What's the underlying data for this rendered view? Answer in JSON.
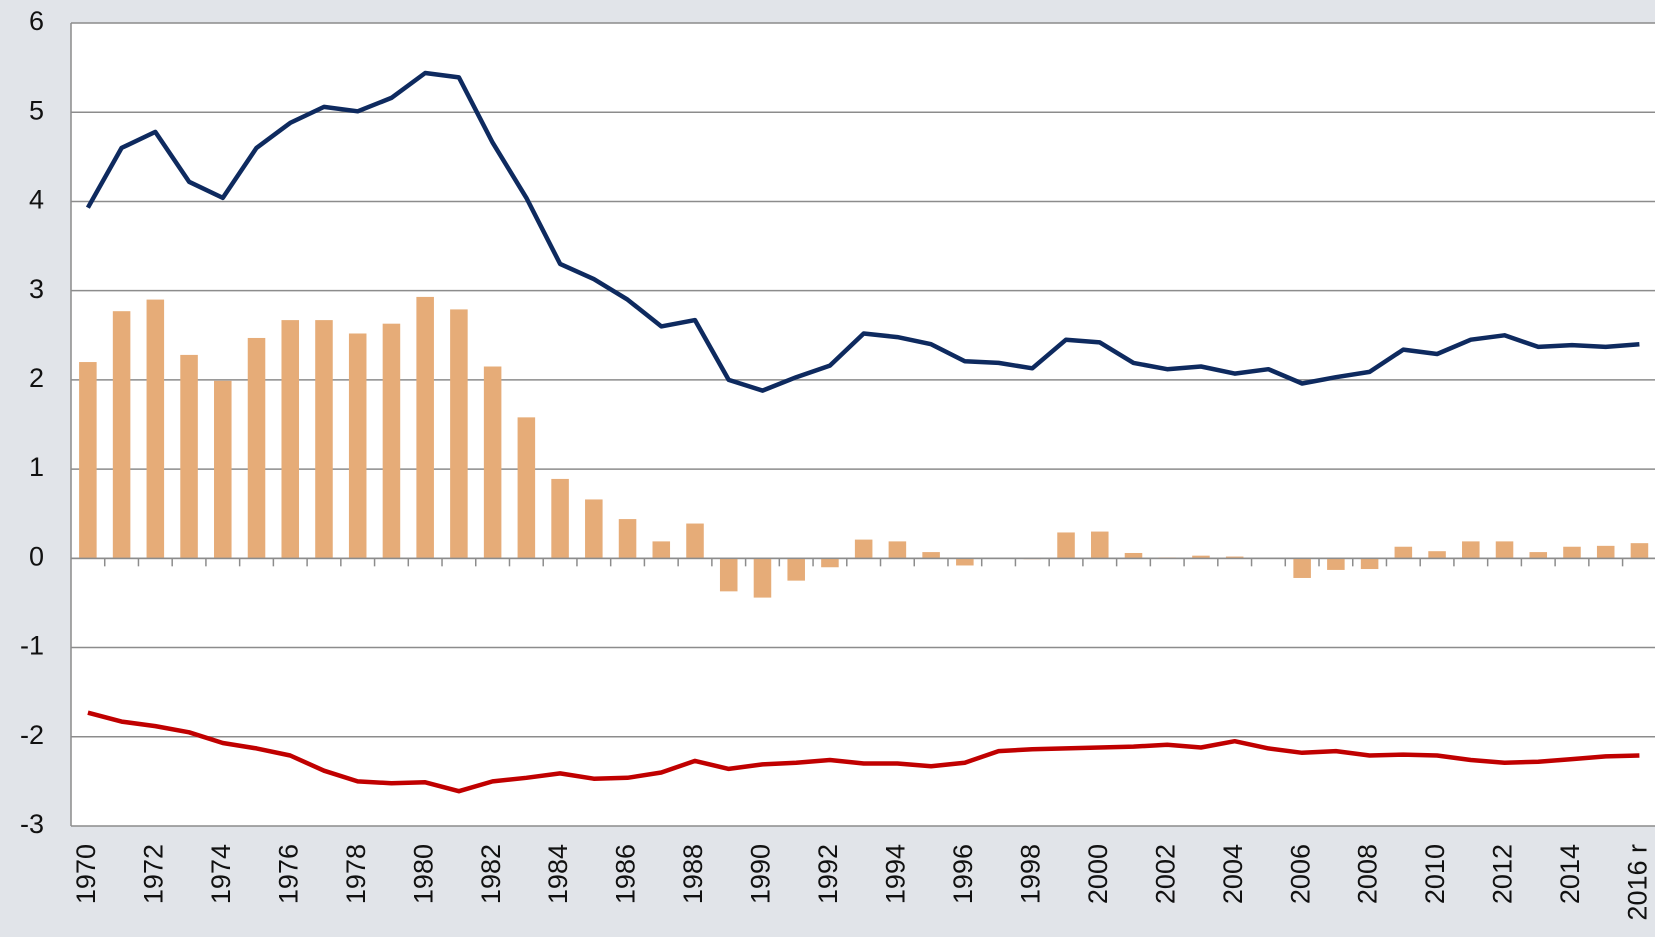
{
  "chart_data": {
    "type": "combo",
    "categories": [
      "1970",
      null,
      "1972",
      null,
      "1974",
      null,
      "1976",
      null,
      "1978",
      null,
      "1980",
      null,
      "1982",
      null,
      "1984",
      null,
      "1986",
      null,
      "1988",
      null,
      "1990",
      null,
      "1992",
      null,
      "1994",
      null,
      "1996",
      null,
      "1998",
      null,
      "2000",
      null,
      "2002",
      null,
      "2004",
      null,
      "2006",
      null,
      "2008",
      null,
      "2010",
      null,
      "2012",
      null,
      "2014",
      null,
      "2016 r"
    ],
    "series": [
      {
        "type": "bar",
        "color": "#e6ac78",
        "values": [
          2.2,
          2.77,
          2.9,
          2.28,
          1.99,
          2.47,
          2.67,
          2.67,
          2.52,
          2.63,
          2.93,
          2.79,
          2.15,
          1.58,
          0.89,
          0.66,
          0.44,
          0.19,
          0.39,
          -0.37,
          -0.44,
          -0.25,
          -0.1,
          0.21,
          0.19,
          0.07,
          -0.08,
          0,
          -0.01,
          0.29,
          0.3,
          0.06,
          0.01,
          0.03,
          0.02,
          0,
          -0.22,
          -0.13,
          -0.12,
          0.13,
          0.08,
          0.19,
          0.19,
          0.07,
          0.13,
          0.14,
          0.17
        ]
      },
      {
        "type": "line",
        "color": "#0e2a5f",
        "values": [
          3.93,
          4.6,
          4.78,
          4.22,
          4.04,
          4.6,
          4.88,
          5.06,
          5.01,
          5.16,
          5.44,
          5.39,
          4.66,
          4.04,
          3.3,
          3.13,
          2.9,
          2.6,
          2.67,
          2.0,
          1.88,
          2.03,
          2.16,
          2.52,
          2.48,
          2.4,
          2.21,
          2.19,
          2.13,
          2.45,
          2.42,
          2.19,
          2.12,
          2.15,
          2.07,
          2.12,
          1.96,
          2.03,
          2.09,
          2.34,
          2.29,
          2.45,
          2.5,
          2.37,
          2.39,
          2.37,
          2.4
        ]
      },
      {
        "type": "line",
        "color": "#c00000",
        "values": [
          -1.73,
          -1.83,
          -1.88,
          -1.95,
          -2.07,
          -2.13,
          -2.21,
          -2.38,
          -2.5,
          -2.52,
          -2.51,
          -2.61,
          -2.5,
          -2.46,
          -2.41,
          -2.47,
          -2.46,
          -2.4,
          -2.27,
          -2.36,
          -2.31,
          -2.29,
          -2.26,
          -2.3,
          -2.3,
          -2.33,
          -2.29,
          -2.16,
          -2.14,
          -2.13,
          -2.12,
          -2.11,
          -2.09,
          -2.12,
          -2.05,
          -2.13,
          -2.18,
          -2.16,
          -2.21,
          -2.2,
          -2.21,
          -2.26,
          -2.29,
          -2.28,
          -2.25,
          -2.22,
          -2.21
        ]
      }
    ],
    "ylim": [
      -3,
      6
    ],
    "yticks": [
      -3,
      -2,
      -1,
      0,
      1,
      2,
      3,
      4,
      5,
      6
    ],
    "grid": true
  }
}
